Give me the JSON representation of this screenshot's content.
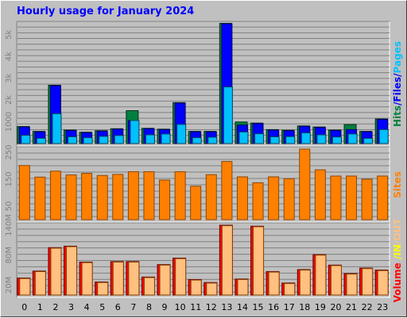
{
  "colors": {
    "pages": "#00c0ff",
    "files": "#0000ff",
    "hits": "#008040",
    "sites": "#ff8000",
    "in": "#ffff00",
    "out": "#ffc080",
    "volume": "#ff0000",
    "plot_bg": "#c0c0c0",
    "grid": "#808080",
    "tick_text": "#808080",
    "title": "#0000ff"
  },
  "chart_data": [
    {
      "type": "bar",
      "title": "Hourly usage for January 2024",
      "categories": [
        "0",
        "1",
        "2",
        "3",
        "4",
        "5",
        "6",
        "7",
        "8",
        "9",
        "10",
        "11",
        "12",
        "13",
        "14",
        "15",
        "16",
        "17",
        "18",
        "19",
        "20",
        "21",
        "22",
        "23"
      ],
      "ylim": [
        0,
        5500
      ],
      "yticks": [
        "1000",
        "2k",
        "3k",
        "4k",
        "5k"
      ],
      "ytick_values": [
        1000,
        2000,
        3000,
        4000,
        5000
      ],
      "side_label": [
        "Hits",
        "/",
        "Files",
        "/",
        "Pages"
      ],
      "side_label_colors": [
        "hits",
        "files",
        "files",
        "files",
        "pages"
      ],
      "series": [
        {
          "name": "Hits",
          "color_key": "hits",
          "values": [
            780,
            560,
            2680,
            620,
            520,
            590,
            680,
            1510,
            700,
            660,
            1880,
            560,
            560,
            5520,
            990,
            940,
            640,
            610,
            810,
            760,
            620,
            870,
            560,
            1130
          ]
        },
        {
          "name": "Files",
          "color_key": "files",
          "values": [
            760,
            540,
            2660,
            600,
            500,
            570,
            660,
            1050,
            680,
            640,
            1860,
            540,
            540,
            5500,
            850,
            920,
            620,
            590,
            790,
            740,
            600,
            640,
            540,
            1110
          ]
        },
        {
          "name": "Pages",
          "color_key": "pages",
          "values": [
            380,
            240,
            1370,
            310,
            270,
            330,
            370,
            1060,
            400,
            440,
            880,
            270,
            290,
            2600,
            530,
            450,
            310,
            320,
            490,
            400,
            300,
            440,
            240,
            640
          ]
        }
      ]
    },
    {
      "type": "bar",
      "categories": [
        "0",
        "1",
        "2",
        "3",
        "4",
        "5",
        "6",
        "7",
        "8",
        "9",
        "10",
        "11",
        "12",
        "13",
        "14",
        "15",
        "16",
        "17",
        "18",
        "19",
        "20",
        "21",
        "22",
        "23"
      ],
      "ylim": [
        0,
        262
      ],
      "yticks": [
        "50",
        "150",
        "250"
      ],
      "ytick_values": [
        50,
        150,
        250
      ],
      "side_label": [
        "Sites"
      ],
      "side_label_colors": [
        "sites"
      ],
      "series": [
        {
          "name": "Sites",
          "color_key": "sites",
          "values": [
            201,
            158,
            180,
            166,
            172,
            164,
            168,
            178,
            178,
            147,
            178,
            124,
            167,
            216,
            159,
            137,
            159,
            152,
            262,
            185,
            162,
            162,
            150,
            162
          ]
        }
      ]
    },
    {
      "type": "bar",
      "categories": [
        "0",
        "1",
        "2",
        "3",
        "4",
        "5",
        "6",
        "7",
        "8",
        "9",
        "10",
        "11",
        "12",
        "13",
        "14",
        "15",
        "16",
        "17",
        "18",
        "19",
        "20",
        "21",
        "22",
        "23"
      ],
      "ylim": [
        0,
        140
      ],
      "yticks": [
        "20M",
        "80M",
        "140M"
      ],
      "ytick_values": [
        20,
        80,
        140
      ],
      "side_label": [
        "Volume",
        " ",
        "/",
        "IN",
        "/",
        "OUT"
      ],
      "side_label_colors": [
        "volume",
        "volume",
        "in",
        "in",
        "out",
        "out"
      ],
      "series": [
        {
          "name": "Volume",
          "color_key": "volume",
          "values": [
            34,
            48,
            95,
            98,
            66,
            26,
            67,
            67,
            36,
            61,
            74,
            31,
            25,
            140,
            32,
            138,
            47,
            24,
            51,
            81,
            60,
            43,
            54,
            50
          ]
        },
        {
          "name": "Volume",
          "color_key": "out",
          "values": [
            33,
            47,
            94,
            97,
            65,
            25,
            66,
            66,
            35,
            60,
            73,
            30,
            24,
            139,
            31,
            137,
            46,
            23,
            50,
            80,
            59,
            42,
            53,
            49
          ]
        }
      ]
    }
  ]
}
